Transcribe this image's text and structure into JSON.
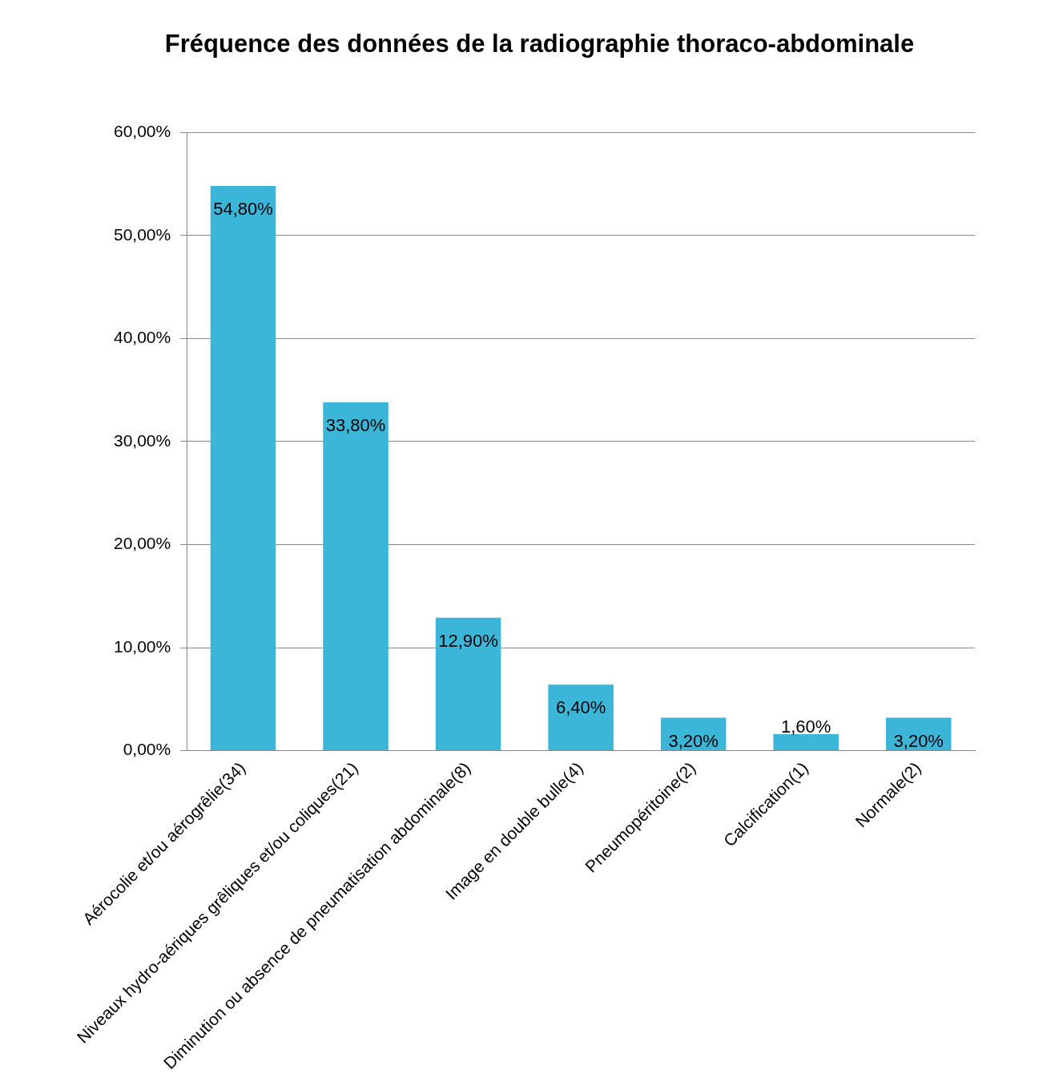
{
  "chart_data": {
    "type": "bar",
    "title": "Fréquence des données de la radiographie thoraco-abdominale",
    "categories": [
      "Aérocolie et/ou aérogrêlie(34)",
      "Niveaux hydro-aériques grêliques et/ou coliques(21)",
      "Diminution ou absence de pneumatisation abdominale(8)",
      "Image en double bulle(4)",
      "Pneumopéritoine(2)",
      "Calcification(1)",
      "Normale(2)"
    ],
    "values": [
      54.8,
      33.8,
      12.9,
      6.4,
      3.2,
      1.6,
      3.2
    ],
    "value_labels": [
      "54,80%",
      "33,80%",
      "12,90%",
      "6,40%",
      "3,20%",
      "1,60%",
      "3,20%"
    ],
    "color": "#3bb6d8",
    "ylim": [
      0,
      60
    ],
    "yticks": [
      {
        "value": 0,
        "label": "0,00%"
      },
      {
        "value": 10,
        "label": "10,00%"
      },
      {
        "value": 20,
        "label": "20,00%"
      },
      {
        "value": 30,
        "label": "30,00%"
      },
      {
        "value": 40,
        "label": "40,00%"
      },
      {
        "value": 50,
        "label": "50,00%"
      },
      {
        "value": 60,
        "label": "60,00%"
      }
    ],
    "grid": "y"
  }
}
